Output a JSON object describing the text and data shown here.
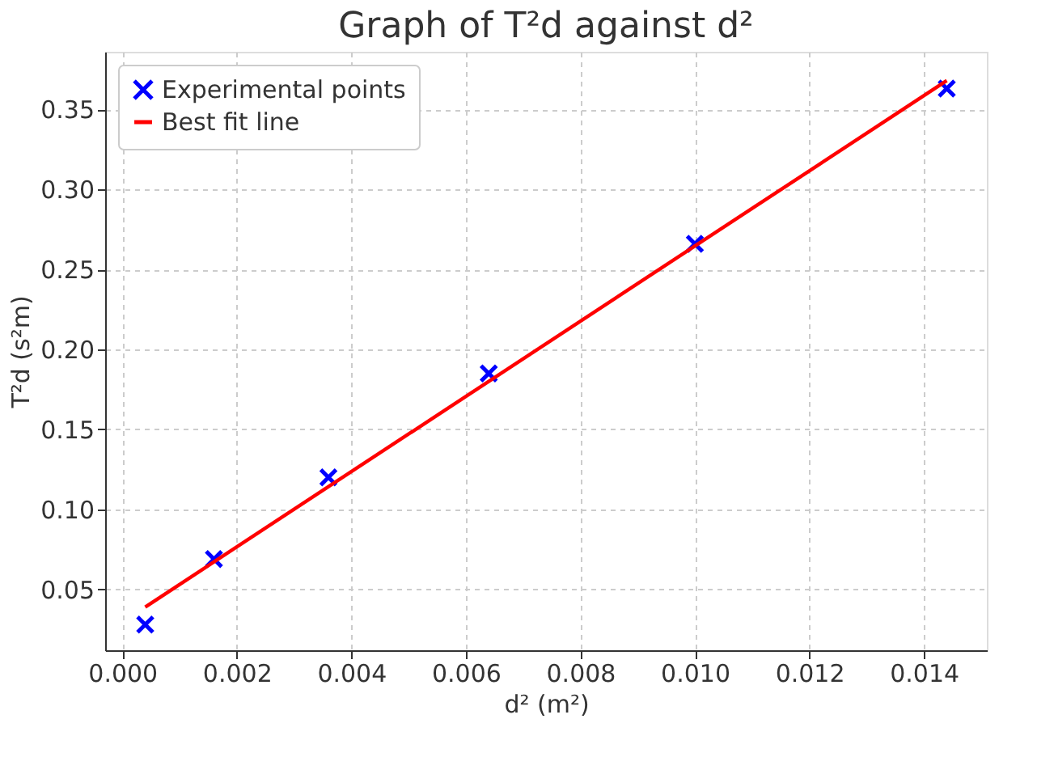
{
  "chart_data": {
    "type": "scatter",
    "title": "Graph of T²d against d²",
    "xlabel": "d² (m²)",
    "ylabel": "T²d (s²m)",
    "series": [
      {
        "name": "Experimental points",
        "color": "#0000ff",
        "marker": "cross",
        "x": [
          0.0004,
          0.0016,
          0.0036,
          0.0064,
          0.01,
          0.0144
        ],
        "values": [
          0.028,
          0.069,
          0.12,
          0.185,
          0.266,
          0.363
        ]
      },
      {
        "name": "Best fit line",
        "type": "line",
        "color": "#ff0000",
        "marker": "none",
        "line_style": "solid",
        "x": [
          0.0004,
          0.0144
        ],
        "values": [
          0.039,
          0.368
        ]
      }
    ],
    "xlim": [
      -0.0003,
      0.0151
    ],
    "ylim": [
      0.012,
      0.386
    ],
    "xticks": [
      {
        "value": 0,
        "label": "0.000"
      },
      0.002,
      0.004,
      0.006,
      0.008,
      {
        "value": 0.01,
        "label": "0.010"
      },
      0.012,
      0.014
    ],
    "yticks": [
      0.05,
      {
        "value": 0.1,
        "label": "0.10"
      },
      0.15,
      {
        "value": 0.2,
        "label": "0.20"
      },
      0.25,
      {
        "value": 0.3,
        "label": "0.30"
      },
      0.35
    ],
    "grid": true,
    "legend": "top left"
  }
}
